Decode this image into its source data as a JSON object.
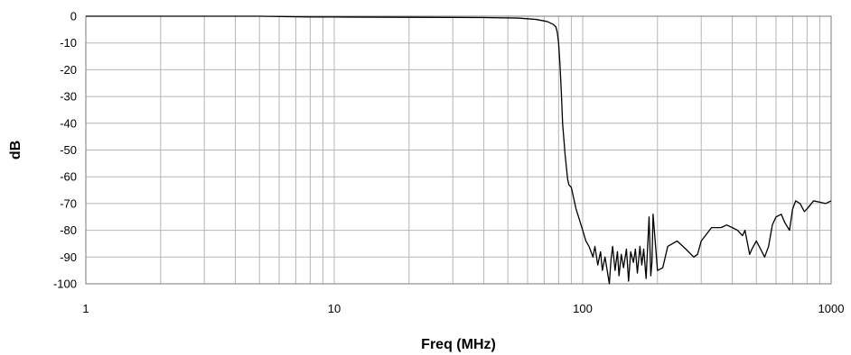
{
  "chart_data": {
    "type": "line",
    "xlabel": "Freq (MHz)",
    "ylabel": "dB",
    "xscale": "log",
    "xlim": [
      1,
      1000
    ],
    "ylim": [
      -100,
      0
    ],
    "grid": true,
    "legend": "none",
    "x_ticks": [
      1,
      10,
      100,
      1000
    ],
    "x_tick_labels": [
      "1",
      "10",
      "100",
      "1000"
    ],
    "y_ticks": [
      0,
      -10,
      -20,
      -30,
      -40,
      -50,
      -60,
      -70,
      -80,
      -90,
      -100
    ],
    "y_tick_labels": [
      "0",
      "-10",
      "-20",
      "-30",
      "-40",
      "-50",
      "-60",
      "-70",
      "-80",
      "-90",
      "-100"
    ],
    "colors": {
      "line": "#000000",
      "grid": "#b4b4b4",
      "border": "#7a7a7a"
    },
    "series": [
      {
        "x": [
          1,
          2,
          5,
          8,
          10,
          20,
          40,
          55,
          65,
          72,
          76,
          78,
          79,
          80,
          81,
          82,
          83,
          85,
          87,
          88,
          90,
          92,
          94,
          97,
          100,
          103,
          106,
          108,
          110,
          112,
          115,
          118,
          120,
          123,
          126,
          128,
          130,
          132,
          135,
          138,
          140,
          143,
          146,
          150,
          153,
          156,
          160,
          163,
          166,
          170,
          173,
          176,
          180,
          185,
          188,
          190,
          192,
          200,
          210,
          220,
          240,
          260,
          280,
          290,
          300,
          330,
          360,
          380,
          400,
          420,
          440,
          450,
          470,
          480,
          500,
          520,
          540,
          560,
          580,
          600,
          630,
          650,
          680,
          700,
          720,
          750,
          780,
          800,
          850,
          900,
          950,
          1000
        ],
        "y": [
          0,
          0,
          0,
          -0.3,
          -0.3,
          -0.4,
          -0.5,
          -0.7,
          -1.2,
          -2,
          -3,
          -4,
          -6,
          -10,
          -18,
          -28,
          -40,
          -52,
          -61,
          -63,
          -64,
          -68,
          -72,
          -76,
          -80,
          -84,
          -86,
          -88,
          -90,
          -86,
          -93,
          -88,
          -95,
          -90,
          -96,
          -100,
          -91,
          -86,
          -95,
          -88,
          -97,
          -89,
          -94,
          -87,
          -99,
          -88,
          -92,
          -87,
          -96,
          -86,
          -93,
          -87,
          -98,
          -75,
          -97,
          -92,
          -74,
          -95,
          -94,
          -86,
          -84,
          -87,
          -90,
          -89,
          -84,
          -79,
          -79,
          -78,
          -79,
          -80,
          -82,
          -80,
          -89,
          -87,
          -84,
          -87,
          -90,
          -86,
          -78,
          -75,
          -74,
          -77,
          -80,
          -72,
          -69,
          -70,
          -73,
          -72,
          -69,
          -69.5,
          -70,
          -69
        ]
      }
    ]
  }
}
